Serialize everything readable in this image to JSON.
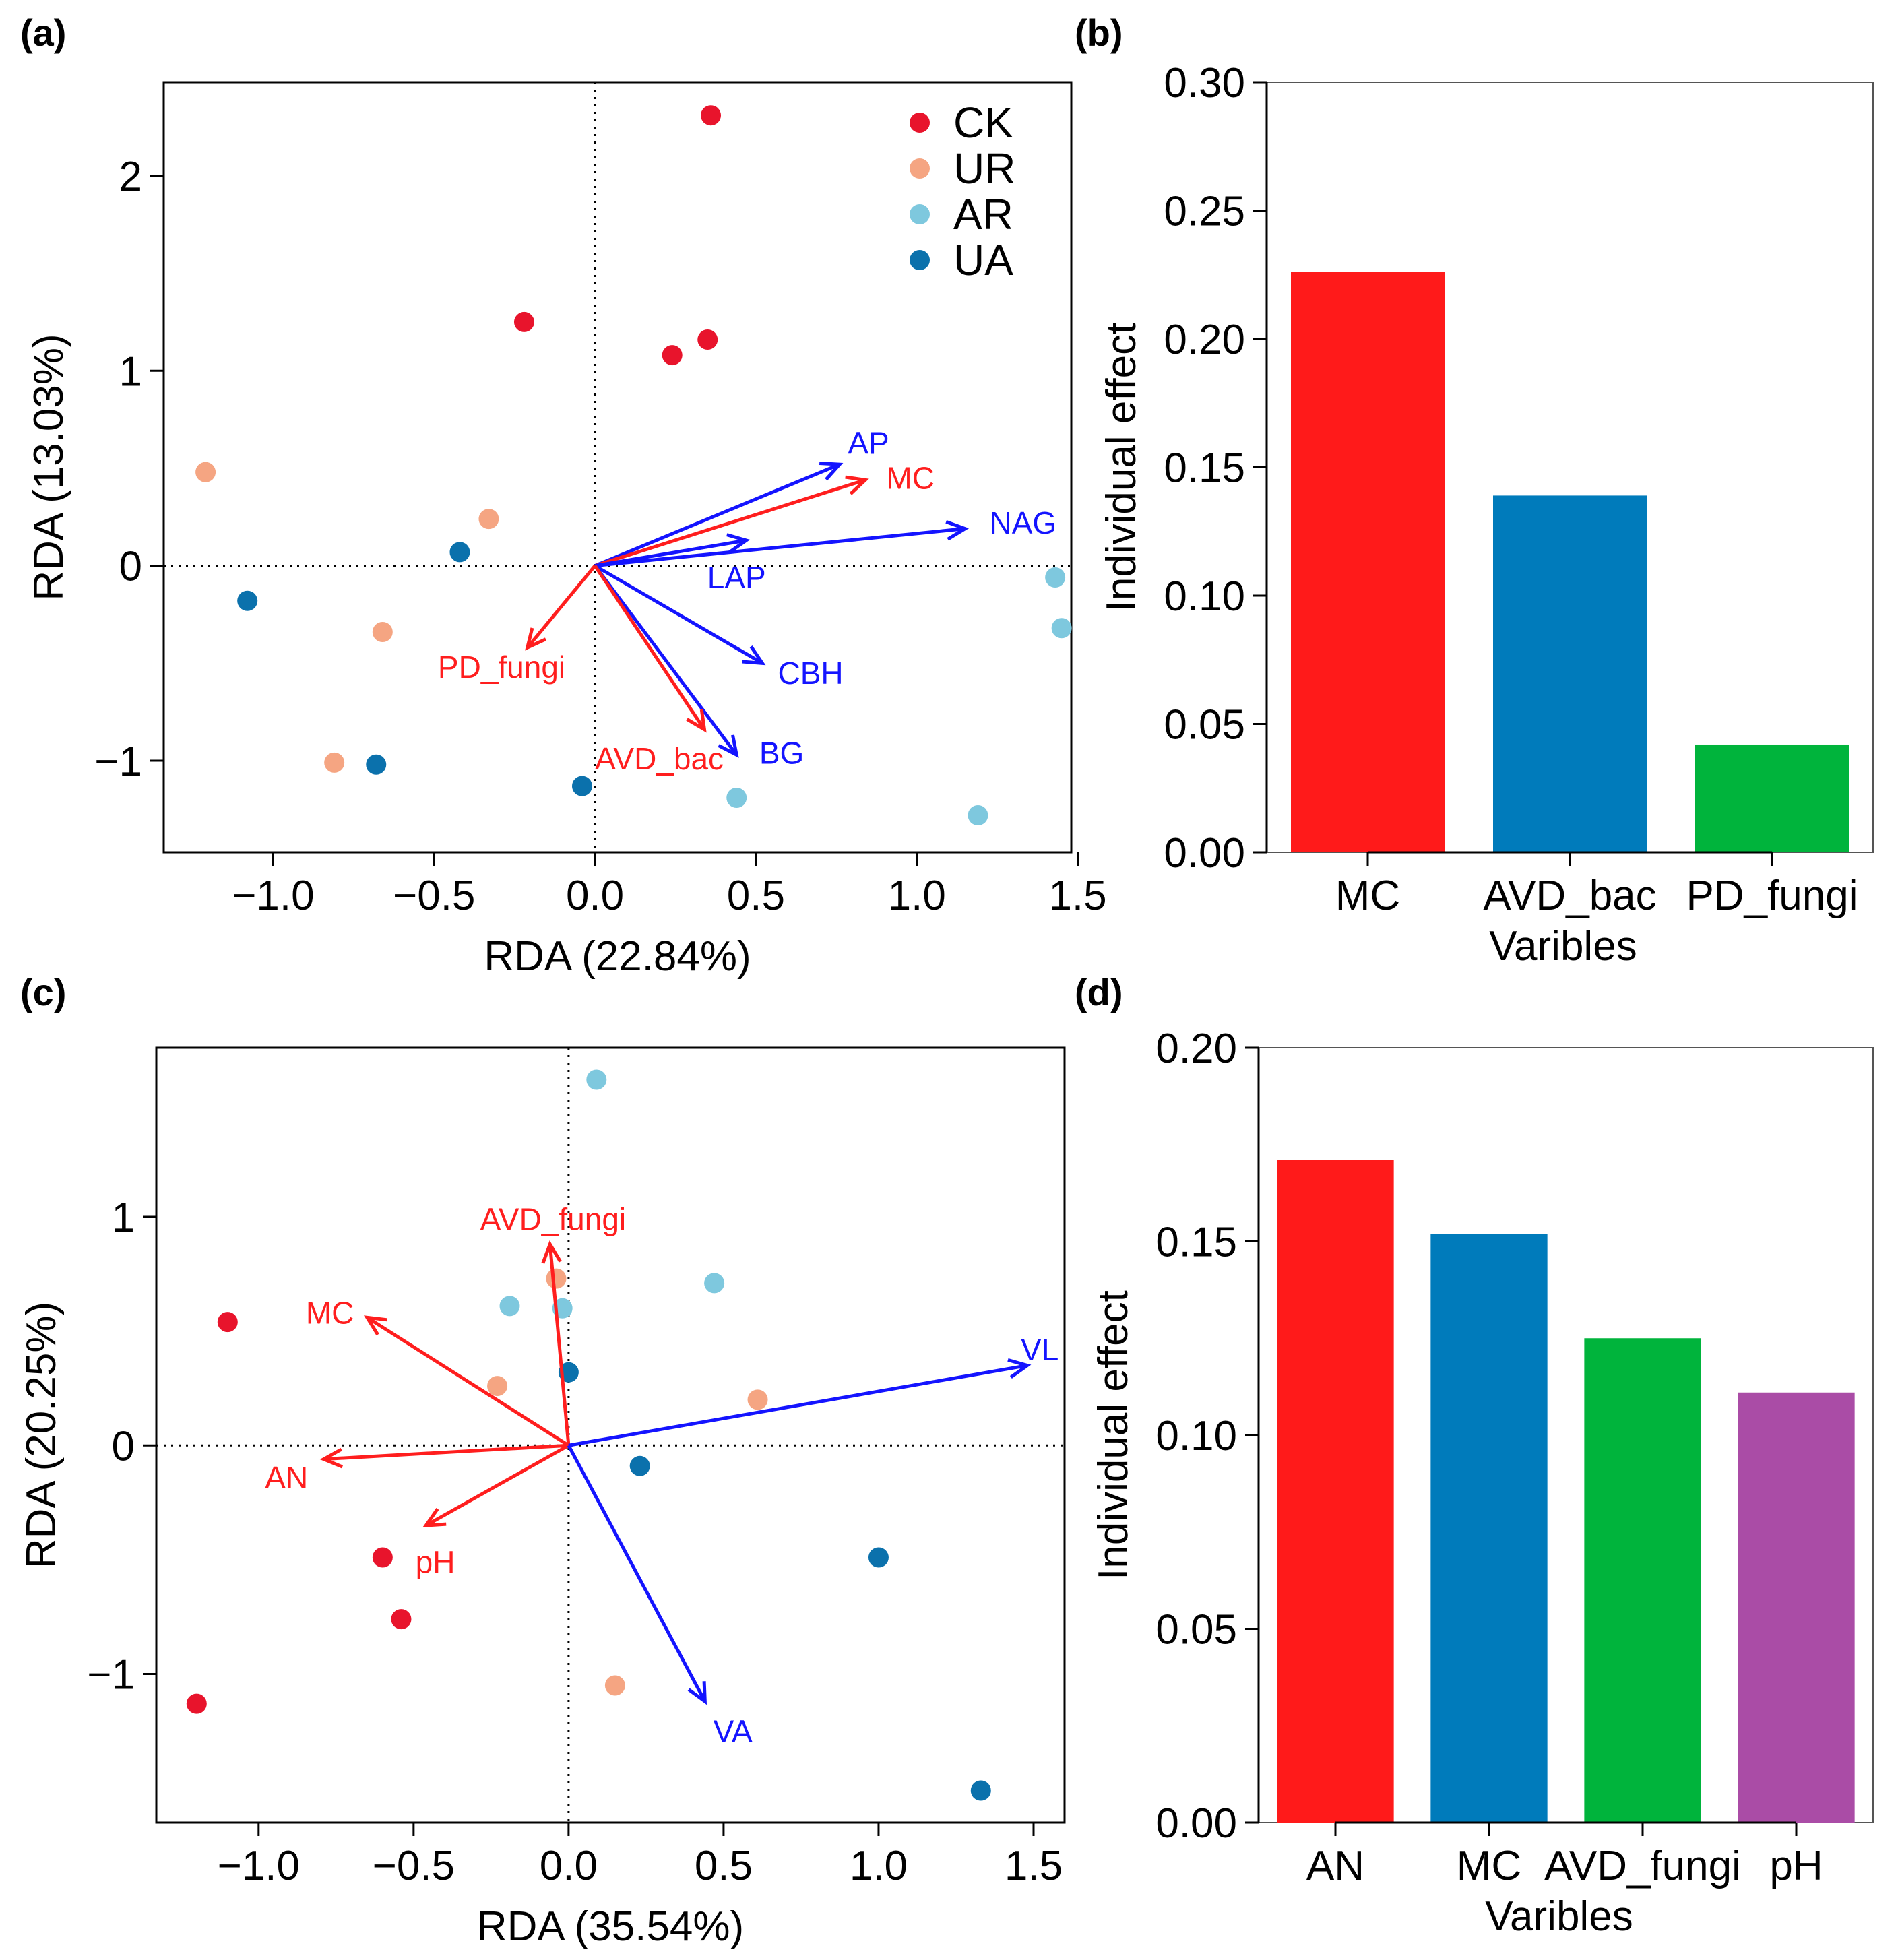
{
  "colors": {
    "CK": "#e8142c",
    "UR": "#f5a582",
    "AR": "#7ec8de",
    "UA": "#0b71ac",
    "env": "#ff1e1e",
    "enzyme": "#1414ff",
    "bar_red": "#ff1a1a",
    "bar_blue": "#007bbb",
    "bar_green": "#00b43c",
    "bar_purple": "#aa4ca6"
  },
  "chart_data": [
    {
      "panel": "(a)",
      "type": "scatter",
      "xlabel": "RDA (22.84%)",
      "ylabel": "RDA (13.03%)",
      "xlim": [
        -1.34,
        1.48
      ],
      "ylim": [
        -1.47,
        2.48
      ],
      "xticks": [
        {
          "v": -1.0,
          "label": "−1.0"
        },
        {
          "v": -0.5,
          "label": "−0.5"
        },
        {
          "v": 0.0,
          "label": "0.0"
        },
        {
          "v": 0.5,
          "label": "0.5"
        },
        {
          "v": 1.0,
          "label": "1.0"
        },
        {
          "v": 1.5,
          "label": "1.5"
        }
      ],
      "yticks": [
        {
          "v": -1,
          "label": "−1"
        },
        {
          "v": 0,
          "label": "0"
        },
        {
          "v": 1,
          "label": "1"
        },
        {
          "v": 2,
          "label": "2"
        }
      ],
      "legend": [
        {
          "group": "CK",
          "label": "CK"
        },
        {
          "group": "UR",
          "label": "UR"
        },
        {
          "group": "AR",
          "label": "AR"
        },
        {
          "group": "UA",
          "label": "UA"
        }
      ],
      "points": [
        {
          "group": "CK",
          "x": 0.36,
          "y": 2.31
        },
        {
          "group": "CK",
          "x": -0.22,
          "y": 1.25
        },
        {
          "group": "CK",
          "x": 0.35,
          "y": 1.16
        },
        {
          "group": "CK",
          "x": 0.24,
          "y": 1.08
        },
        {
          "group": "UR",
          "x": -1.21,
          "y": 0.48
        },
        {
          "group": "UR",
          "x": -0.33,
          "y": 0.24
        },
        {
          "group": "UR",
          "x": -0.66,
          "y": -0.34
        },
        {
          "group": "UR",
          "x": -0.81,
          "y": -1.01
        },
        {
          "group": "AR",
          "x": 1.43,
          "y": -0.06
        },
        {
          "group": "AR",
          "x": 1.45,
          "y": -0.32
        },
        {
          "group": "AR",
          "x": 0.44,
          "y": -1.19
        },
        {
          "group": "AR",
          "x": 1.19,
          "y": -1.28
        },
        {
          "group": "UA",
          "x": -0.42,
          "y": 0.07
        },
        {
          "group": "UA",
          "x": -1.08,
          "y": -0.18
        },
        {
          "group": "UA",
          "x": -0.68,
          "y": -1.02
        },
        {
          "group": "UA",
          "x": -0.04,
          "y": -1.13
        }
      ],
      "vectors": [
        {
          "name": "AP",
          "kind": "enzyme",
          "x": 0.76,
          "y": 0.52,
          "lx": 0.85,
          "ly": 0.63,
          "anchor": "middle"
        },
        {
          "name": "MC",
          "kind": "env",
          "x": 0.84,
          "y": 0.44,
          "lx": 0.98,
          "ly": 0.45,
          "anchor": "middle"
        },
        {
          "name": "NAG",
          "kind": "enzyme",
          "x": 1.15,
          "y": 0.19,
          "lx": 1.33,
          "ly": 0.22,
          "anchor": "middle"
        },
        {
          "name": "LAP",
          "kind": "enzyme",
          "x": 0.47,
          "y": 0.13,
          "lx": 0.44,
          "ly": -0.06,
          "anchor": "middle"
        },
        {
          "name": "CBH",
          "kind": "enzyme",
          "x": 0.52,
          "y": -0.5,
          "lx": 0.67,
          "ly": -0.55,
          "anchor": "middle"
        },
        {
          "name": "BG",
          "kind": "enzyme",
          "x": 0.44,
          "y": -0.97,
          "lx": 0.58,
          "ly": -0.96,
          "anchor": "middle"
        },
        {
          "name": "AVD_bac",
          "kind": "env",
          "x": 0.34,
          "y": -0.84,
          "lx": 0.2,
          "ly": -0.99,
          "anchor": "middle"
        },
        {
          "name": "PD_fungi",
          "kind": "env",
          "x": -0.21,
          "y": -0.42,
          "lx": -0.29,
          "ly": -0.52,
          "anchor": "middle"
        }
      ]
    },
    {
      "panel": "(b)",
      "type": "bar",
      "xlabel": "Varibles",
      "ylabel": "Individual effect",
      "ylim": [
        0,
        0.3
      ],
      "yticks": [
        {
          "v": 0.0,
          "label": "0.00"
        },
        {
          "v": 0.05,
          "label": "0.05"
        },
        {
          "v": 0.1,
          "label": "0.10"
        },
        {
          "v": 0.15,
          "label": "0.15"
        },
        {
          "v": 0.2,
          "label": "0.20"
        },
        {
          "v": 0.25,
          "label": "0.25"
        },
        {
          "v": 0.3,
          "label": "0.30"
        }
      ],
      "categories": [
        "MC",
        "AVD_bac",
        "PD_fungi"
      ],
      "values": [
        0.226,
        0.139,
        0.042
      ],
      "bar_colors": [
        "bar_red",
        "bar_blue",
        "bar_green"
      ]
    },
    {
      "panel": "(c)",
      "type": "scatter",
      "xlabel": "RDA (35.54%)",
      "ylabel": "RDA (20.25%)",
      "xlim": [
        -1.33,
        1.6
      ],
      "ylim": [
        -1.65,
        1.74
      ],
      "xticks": [
        {
          "v": -1.0,
          "label": "−1.0"
        },
        {
          "v": -0.5,
          "label": "−0.5"
        },
        {
          "v": 0.0,
          "label": "0.0"
        },
        {
          "v": 0.5,
          "label": "0.5"
        },
        {
          "v": 1.0,
          "label": "1.0"
        },
        {
          "v": 1.5,
          "label": "1.5"
        }
      ],
      "yticks": [
        {
          "v": -1,
          "label": "−1"
        },
        {
          "v": 0,
          "label": "0"
        },
        {
          "v": 1,
          "label": "1"
        }
      ],
      "legend": [],
      "points": [
        {
          "group": "CK",
          "x": -1.1,
          "y": 0.54
        },
        {
          "group": "CK",
          "x": -0.6,
          "y": -0.49
        },
        {
          "group": "CK",
          "x": -0.54,
          "y": -0.76
        },
        {
          "group": "CK",
          "x": -1.2,
          "y": -1.13
        },
        {
          "group": "UR",
          "x": -0.04,
          "y": 0.73
        },
        {
          "group": "UR",
          "x": -0.23,
          "y": 0.26
        },
        {
          "group": "UR",
          "x": 0.61,
          "y": 0.2
        },
        {
          "group": "UR",
          "x": 0.15,
          "y": -1.05
        },
        {
          "group": "AR",
          "x": 0.09,
          "y": 1.6
        },
        {
          "group": "AR",
          "x": 0.47,
          "y": 0.71
        },
        {
          "group": "AR",
          "x": -0.19,
          "y": 0.61
        },
        {
          "group": "AR",
          "x": -0.02,
          "y": 0.6
        },
        {
          "group": "UA",
          "x": 0.0,
          "y": 0.32
        },
        {
          "group": "UA",
          "x": 0.23,
          "y": -0.09
        },
        {
          "group": "UA",
          "x": 1.0,
          "y": -0.49
        },
        {
          "group": "UA",
          "x": 1.33,
          "y": -1.51
        }
      ],
      "vectors": [
        {
          "name": "AVD_fungi",
          "kind": "env",
          "x": -0.06,
          "y": 0.88,
          "lx": -0.05,
          "ly": 0.99,
          "anchor": "middle"
        },
        {
          "name": "MC",
          "kind": "env",
          "x": -0.65,
          "y": 0.56,
          "lx": -0.77,
          "ly": 0.58,
          "anchor": "middle"
        },
        {
          "name": "AN",
          "kind": "env",
          "x": -0.79,
          "y": -0.06,
          "lx": -0.91,
          "ly": -0.14,
          "anchor": "middle"
        },
        {
          "name": "pH",
          "kind": "env",
          "x": -0.46,
          "y": -0.35,
          "lx": -0.43,
          "ly": -0.51,
          "anchor": "middle"
        },
        {
          "name": "VL",
          "kind": "enzyme",
          "x": 1.48,
          "y": 0.35,
          "lx": 1.52,
          "ly": 0.42,
          "anchor": "middle"
        },
        {
          "name": "VA",
          "kind": "enzyme",
          "x": 0.44,
          "y": -1.12,
          "lx": 0.53,
          "ly": -1.25,
          "anchor": "middle"
        }
      ]
    },
    {
      "panel": "(d)",
      "type": "bar",
      "xlabel": "Varibles",
      "ylabel": "Individual effect",
      "ylim": [
        0,
        0.2
      ],
      "yticks": [
        {
          "v": 0.0,
          "label": "0.00"
        },
        {
          "v": 0.05,
          "label": "0.05"
        },
        {
          "v": 0.1,
          "label": "0.10"
        },
        {
          "v": 0.15,
          "label": "0.15"
        },
        {
          "v": 0.2,
          "label": "0.20"
        }
      ],
      "categories": [
        "AN",
        "MC",
        "AVD_fungi",
        "pH"
      ],
      "values": [
        0.171,
        0.152,
        0.125,
        0.111
      ],
      "bar_colors": [
        "bar_red",
        "bar_blue",
        "bar_green",
        "bar_purple"
      ]
    }
  ]
}
